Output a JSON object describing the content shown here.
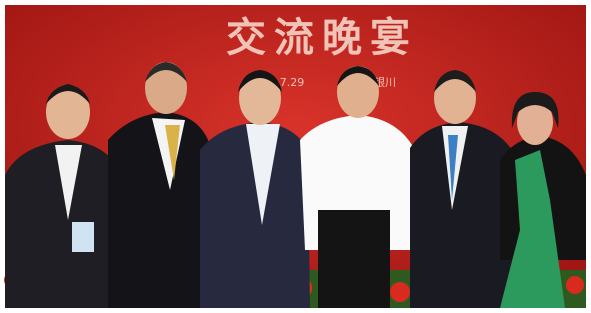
{
  "backdrop": {
    "title": "交流晚宴",
    "date": "7.29",
    "place": "银川"
  }
}
